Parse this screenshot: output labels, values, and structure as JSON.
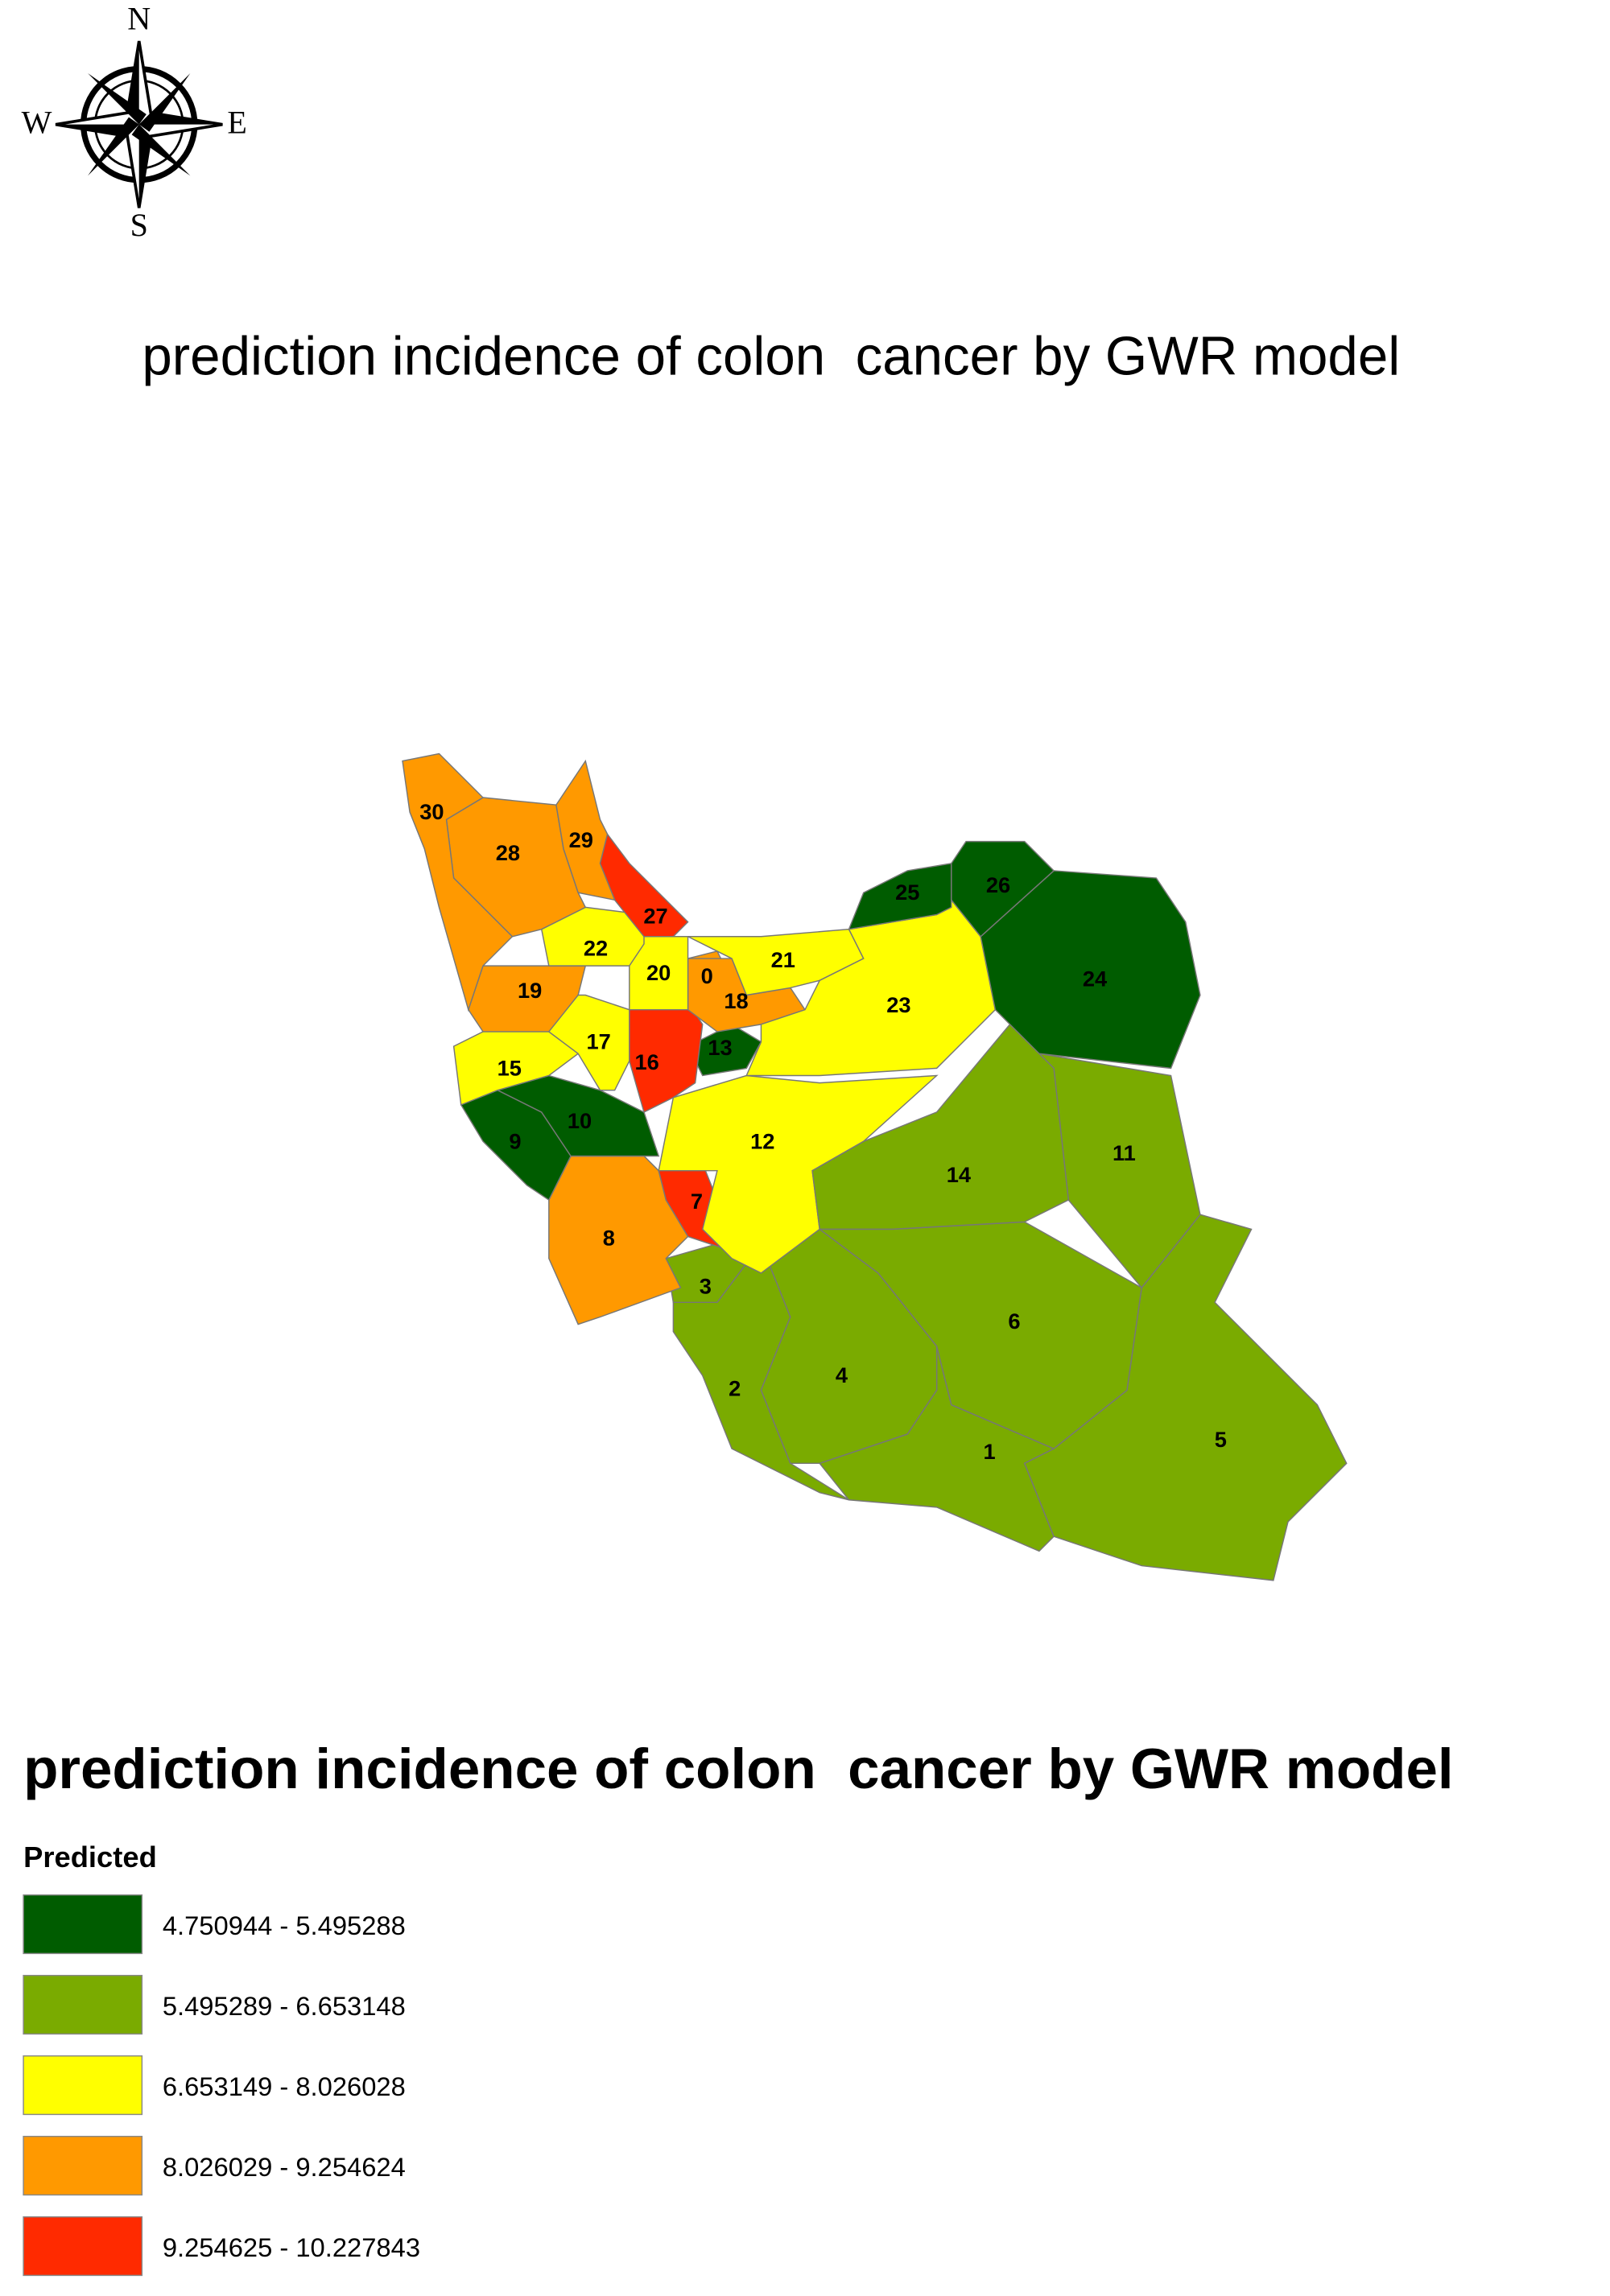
{
  "compass": {
    "north": "N",
    "west": "W",
    "east": "E",
    "south": "S"
  },
  "map": {
    "title": "prediction incidence of colon  cancer by GWR model",
    "regions": [
      {
        "label": "0",
        "color": "#ff9900"
      },
      {
        "label": "1",
        "color": "#7aab00"
      },
      {
        "label": "2",
        "color": "#7aab00"
      },
      {
        "label": "3",
        "color": "#7aab00"
      },
      {
        "label": "4",
        "color": "#7aab00"
      },
      {
        "label": "5",
        "color": "#7aab00"
      },
      {
        "label": "6",
        "color": "#7aab00"
      },
      {
        "label": "7",
        "color": "#ff2a00"
      },
      {
        "label": "8",
        "color": "#ff9900"
      },
      {
        "label": "9",
        "color": "#005c00"
      },
      {
        "label": "10",
        "color": "#005c00"
      },
      {
        "label": "11",
        "color": "#7aab00"
      },
      {
        "label": "12",
        "color": "#ffff00"
      },
      {
        "label": "13",
        "color": "#005c00"
      },
      {
        "label": "14",
        "color": "#7aab00"
      },
      {
        "label": "15",
        "color": "#ffff00"
      },
      {
        "label": "16",
        "color": "#ff2a00"
      },
      {
        "label": "17",
        "color": "#ffff00"
      },
      {
        "label": "18",
        "color": "#ff9900"
      },
      {
        "label": "19",
        "color": "#ff9900"
      },
      {
        "label": "20",
        "color": "#ffff00"
      },
      {
        "label": "21",
        "color": "#ffff00"
      },
      {
        "label": "22",
        "color": "#ffff00"
      },
      {
        "label": "23",
        "color": "#ffff00"
      },
      {
        "label": "24",
        "color": "#005c00"
      },
      {
        "label": "25",
        "color": "#005c00"
      },
      {
        "label": "26",
        "color": "#005c00"
      },
      {
        "label": "27",
        "color": "#ff2a00"
      },
      {
        "label": "28",
        "color": "#ff9900"
      },
      {
        "label": "29",
        "color": "#ff9900"
      },
      {
        "label": "30",
        "color": "#ff9900"
      }
    ]
  },
  "legend": {
    "title": "prediction incidence of colon  cancer by GWR model",
    "subtitle": "Predicted",
    "items": [
      {
        "label": "4.750944 - 5.495288",
        "color": "#005c00"
      },
      {
        "label": "5.495289 - 6.653148",
        "color": "#7aab00"
      },
      {
        "label": "6.653149 - 8.026028",
        "color": "#ffff00"
      },
      {
        "label": "8.026029 - 9.254624",
        "color": "#ff9900"
      },
      {
        "label": "9.254625 - 10.227843",
        "color": "#ff2a00"
      }
    ]
  }
}
